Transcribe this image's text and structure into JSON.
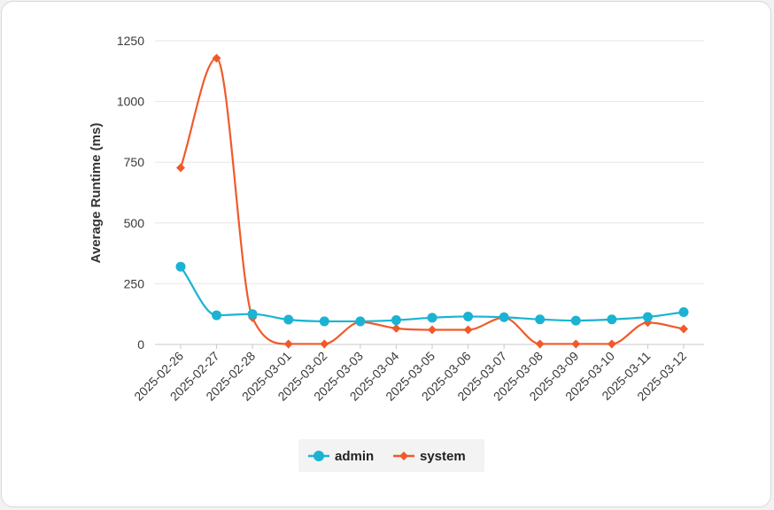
{
  "chart_data": {
    "type": "line",
    "title": "",
    "xlabel": "",
    "ylabel": "Average Runtime (ms)",
    "ylim": [
      0,
      1250
    ],
    "y_ticks": [
      0,
      250,
      500,
      750,
      1000,
      1250
    ],
    "grid": true,
    "legend_position": "bottom-center",
    "categories": [
      "2025-02-26",
      "2025-02-27",
      "2025-02-28",
      "2025-03-01",
      "2025-03-02",
      "2025-03-03",
      "2025-03-04",
      "2025-03-05",
      "2025-03-06",
      "2025-03-07",
      "2025-03-08",
      "2025-03-09",
      "2025-03-10",
      "2025-03-11",
      "2025-03-12"
    ],
    "series": [
      {
        "name": "admin",
        "color": "#1ab3d3",
        "marker": "circle",
        "values": [
          320,
          120,
          125,
          102,
          95,
          95,
          100,
          110,
          115,
          112,
          103,
          98,
          103,
          113,
          133
        ]
      },
      {
        "name": "system",
        "color": "#f05a2a",
        "marker": "diamond",
        "values": [
          727,
          1178,
          110,
          2,
          2,
          92,
          66,
          60,
          60,
          110,
          2,
          2,
          2,
          90,
          64
        ]
      }
    ]
  }
}
